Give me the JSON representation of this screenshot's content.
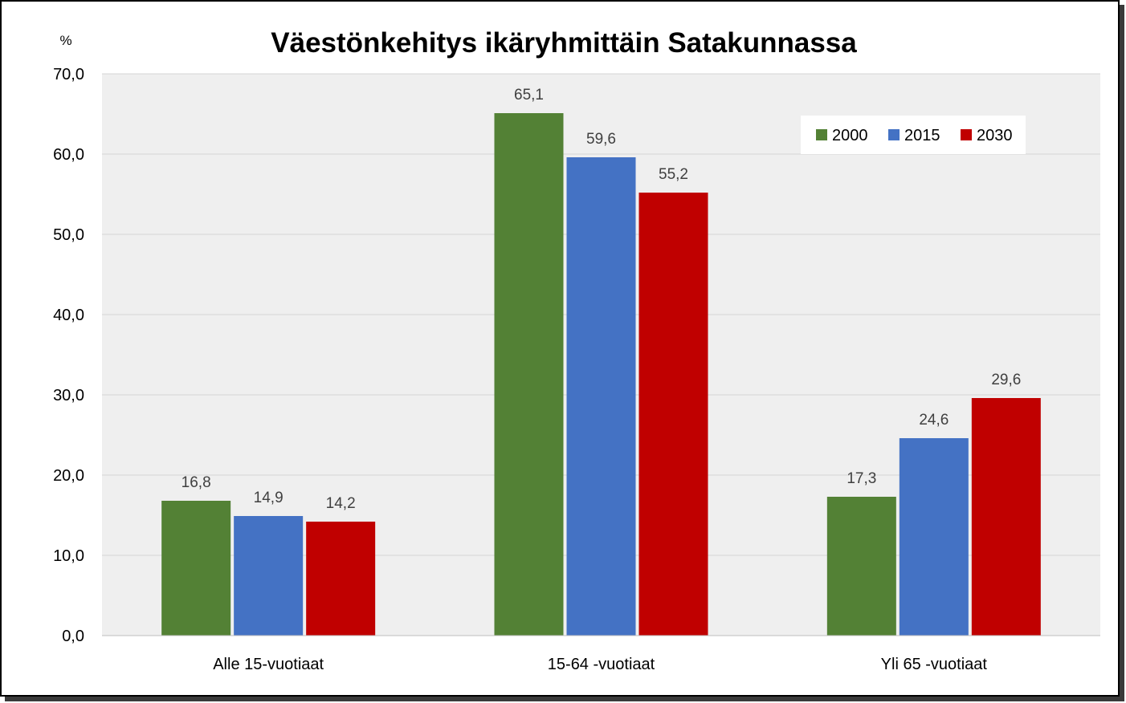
{
  "chart_data": {
    "type": "bar",
    "title": "Väestönkehitys ikäryhmittäin Satakunnassa",
    "unit_label": "%",
    "xlabel": "",
    "ylabel": "",
    "ylim": [
      0,
      70
    ],
    "y_step": 10,
    "y_tick_labels": [
      "0,0",
      "10,0",
      "20,0",
      "30,0",
      "40,0",
      "50,0",
      "60,0",
      "70,0"
    ],
    "grid": true,
    "legend_position": "top-right",
    "categories": [
      "Alle 15-vuotiaat",
      "15-64 -vuotiaat",
      "Yli 65 -vuotiaat"
    ],
    "series": [
      {
        "name": "2000",
        "color": "#538135",
        "values": [
          16.8,
          65.1,
          17.3
        ],
        "labels": [
          "16,8",
          "65,1",
          "17,3"
        ]
      },
      {
        "name": "2015",
        "color": "#4472c4",
        "values": [
          14.9,
          59.6,
          24.6
        ],
        "labels": [
          "14,9",
          "59,6",
          "24,6"
        ]
      },
      {
        "name": "2030",
        "color": "#c00000",
        "values": [
          14.2,
          55.2,
          29.6
        ],
        "labels": [
          "14,2",
          "55,2",
          "29,6"
        ]
      }
    ]
  }
}
